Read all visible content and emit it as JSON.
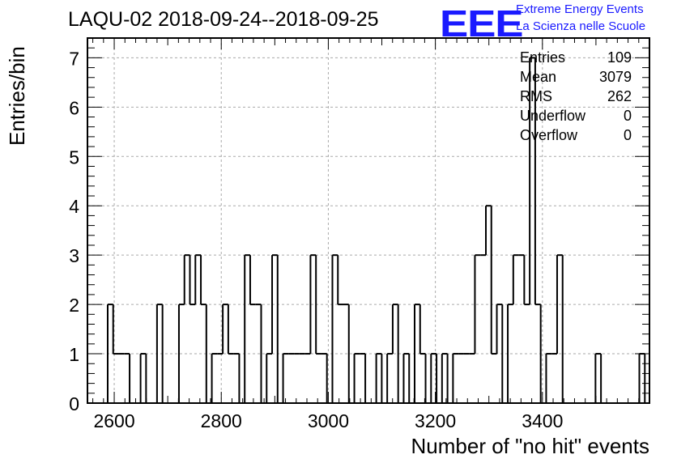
{
  "title": "LAQU-02 2018-09-24--2018-09-25",
  "logo": "EEE",
  "org_line1": "Extreme Energy Events",
  "org_line2": "La Scienza nelle Scuole",
  "stats": [
    {
      "label": "Entries",
      "value": "109"
    },
    {
      "label": "Mean",
      "value": "3079"
    },
    {
      "label": "RMS",
      "value": "262"
    },
    {
      "label": "Underflow",
      "value": "0"
    },
    {
      "label": "Overflow",
      "value": "0"
    }
  ],
  "chart_data": {
    "type": "histogram",
    "title": "LAQU-02 2018-09-24--2018-09-25",
    "xlabel": "Number of \"no hit\" events",
    "ylabel": "Entries/bin",
    "xlim": [
      2550,
      3600
    ],
    "ylim": [
      0,
      7.4
    ],
    "xticks": [
      2600,
      2800,
      3000,
      3200,
      3400
    ],
    "yticks": [
      0,
      1,
      2,
      3,
      4,
      5,
      6,
      7
    ],
    "grid": true,
    "bin_width": 10.24,
    "bin_start": 2587.8,
    "counts": [
      2,
      1,
      1,
      1,
      0,
      0,
      1,
      0,
      0,
      2,
      0,
      0,
      0,
      2,
      3,
      2,
      3,
      2,
      0,
      1,
      1,
      2,
      1,
      1,
      0,
      3,
      2,
      2,
      0,
      1,
      3,
      0,
      1,
      1,
      1,
      1,
      1,
      3,
      1,
      1,
      0,
      3,
      2,
      2,
      0,
      1,
      1,
      0,
      0,
      1,
      0,
      1,
      2,
      0,
      1,
      0,
      2,
      1,
      0,
      1,
      0,
      1,
      0,
      1,
      1,
      1,
      1,
      3,
      3,
      4,
      1,
      2,
      0,
      2,
      3,
      3,
      2,
      7,
      2,
      0,
      1,
      1,
      3,
      0,
      0,
      0,
      0,
      0,
      0,
      1,
      0,
      0,
      0,
      0,
      0,
      0,
      0,
      1
    ]
  }
}
